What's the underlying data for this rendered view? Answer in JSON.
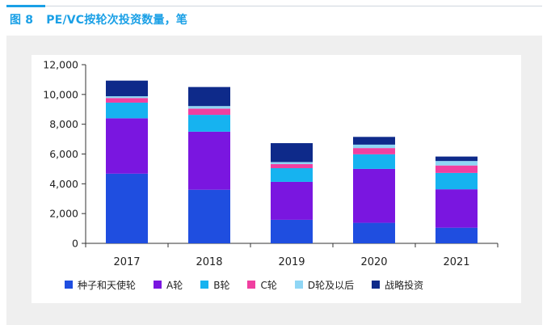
{
  "figure": {
    "number": "图 8",
    "title": "PE/VC按轮次投资数量，笔"
  },
  "colors": {
    "accent": "#1aa0e6",
    "seed_angel": "#1f4ee0",
    "round_a": "#7a16e0",
    "round_b": "#16b3f0",
    "round_c": "#f03fa0",
    "round_d_plus": "#8fd6f5",
    "strategic": "#0e2a8a"
  },
  "chart_data": {
    "type": "bar",
    "stacked": true,
    "categories": [
      "2017",
      "2018",
      "2019",
      "2020",
      "2021"
    ],
    "series": [
      {
        "name": "种子和天使轮",
        "color": "#1f4ee0",
        "values": [
          4680,
          3600,
          1580,
          1380,
          1050
        ]
      },
      {
        "name": "A轮",
        "color": "#7a16e0",
        "values": [
          3720,
          3900,
          2550,
          3620,
          2580
        ]
      },
      {
        "name": "B轮",
        "color": "#16b3f0",
        "values": [
          1050,
          1130,
          920,
          980,
          1100
        ]
      },
      {
        "name": "C轮",
        "color": "#f03fa0",
        "values": [
          310,
          420,
          270,
          420,
          500
        ]
      },
      {
        "name": "D轮及以后",
        "color": "#8fd6f5",
        "values": [
          120,
          170,
          140,
          230,
          300
        ]
      },
      {
        "name": "战略投资",
        "color": "#0e2a8a",
        "values": [
          1050,
          1280,
          1270,
          520,
          300
        ]
      }
    ],
    "ylim": [
      0,
      12000
    ],
    "yticks": [
      "0",
      "2,000",
      "4,000",
      "6,000",
      "8,000",
      "10,000",
      "12,000"
    ],
    "ytick_values": [
      0,
      2000,
      4000,
      6000,
      8000,
      10000,
      12000
    ],
    "grid": false,
    "legend_position": "bottom"
  }
}
